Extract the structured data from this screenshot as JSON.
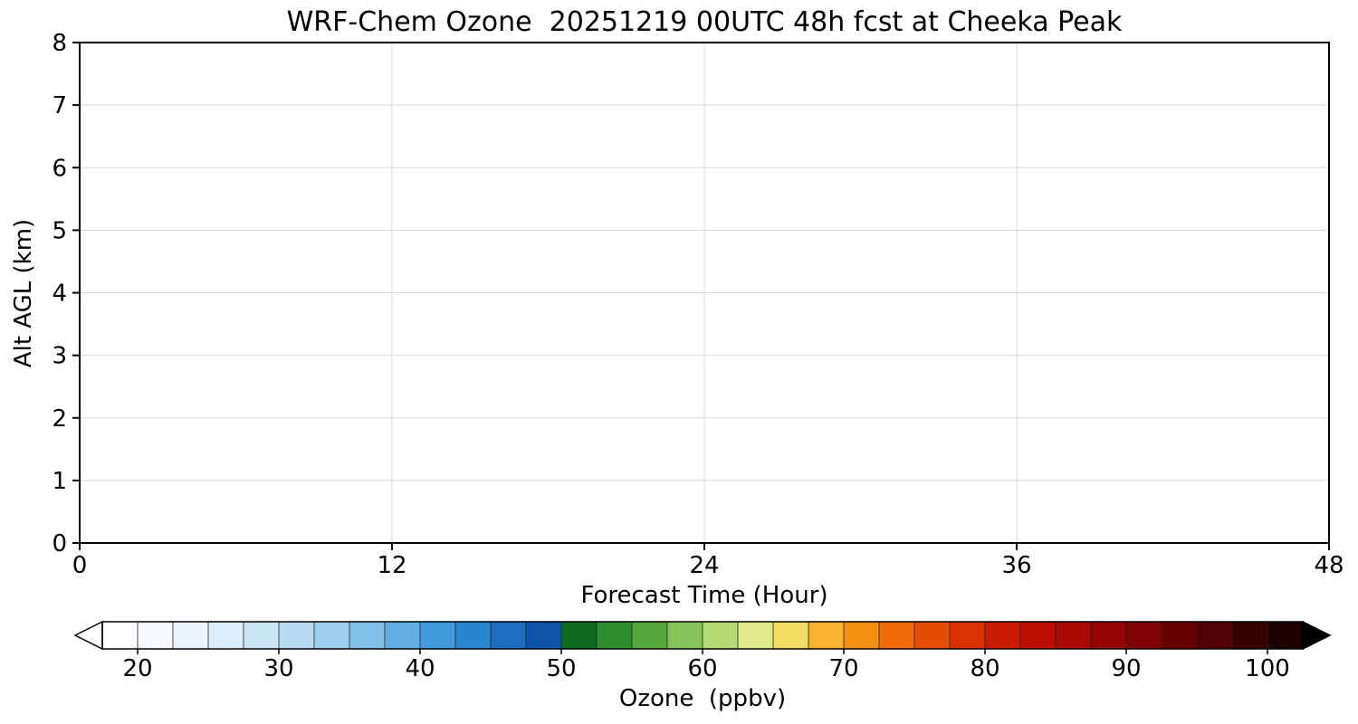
{
  "chart_data": {
    "type": "heatmap",
    "title": "WRF-Chem Ozone  20251219 00UTC 48h fcst at Cheeka Peak",
    "xlabel": "Forecast Time (Hour)",
    "ylabel": "Alt AGL (km)",
    "xlim": [
      0,
      48
    ],
    "ylim": [
      0,
      8
    ],
    "x_ticks": [
      0,
      12,
      24,
      36,
      48
    ],
    "y_ticks": [
      0,
      1,
      2,
      3,
      4,
      5,
      6,
      7,
      8
    ],
    "grid": true,
    "series": [],
    "plot_area_empty": true,
    "colors": {
      "axis": "#000000",
      "grid": "#d8d8d8",
      "background": "#ffffff"
    },
    "colorbar": {
      "label": "Ozone  (ppbv)",
      "tick_values": [
        20,
        30,
        40,
        50,
        60,
        70,
        80,
        90,
        100
      ],
      "range": [
        17.5,
        102.5
      ],
      "segment_step": 2.5,
      "extend": "both",
      "under_color": "#ffffff",
      "over_color": "#000000",
      "segment_colors": [
        "#ffffff",
        "#f7fbff",
        "#eaf4fc",
        "#dcedf9",
        "#cbe5f6",
        "#b7dcf2",
        "#9ecfee",
        "#82c0e8",
        "#62aee2",
        "#419ad9",
        "#2a85cf",
        "#1a6dc0",
        "#0e55ae",
        "#0c6b1f",
        "#2f8f2f",
        "#55a83c",
        "#84c45a",
        "#b4da74",
        "#dfeb8b",
        "#f3dc63",
        "#f7b32e",
        "#f58f13",
        "#ef6c06",
        "#e44d02",
        "#d93102",
        "#cc1b04",
        "#bc0f04",
        "#a90803",
        "#940402",
        "#7e0302",
        "#670201",
        "#500101",
        "#380101",
        "#1e0000"
      ]
    }
  }
}
